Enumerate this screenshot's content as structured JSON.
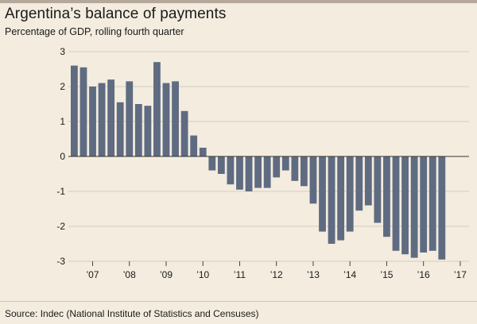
{
  "title": "Argentina’s balance of payments",
  "subtitle": "Percentage of GDP, rolling fourth quarter",
  "source": "Source: Indec (National Institute of Statistics and Censuses)",
  "colors": {
    "bar": "#5f6b81",
    "grid": "#d6ccbd",
    "zero": "#333333",
    "background": "#f3ecdf"
  },
  "chart_data": {
    "type": "bar",
    "title": "Argentina’s balance of payments",
    "subtitle": "Percentage of GDP, rolling fourth quarter",
    "xlabel": "",
    "ylabel": "",
    "ylim": [
      -3,
      3
    ],
    "yticks": [
      "3",
      "2",
      "1",
      "0",
      "-1",
      "-2",
      "-3"
    ],
    "ytick_values": [
      3,
      2,
      1,
      0,
      -1,
      -2,
      -3
    ],
    "xtick_labels": [
      "’07",
      "’08",
      "’09",
      "’10",
      "’11",
      "’12",
      "’13",
      "’14",
      "’15",
      "’16",
      "’17"
    ],
    "xtick_bar_index": [
      2,
      6,
      10,
      14,
      18,
      22,
      26,
      30,
      34,
      38,
      42
    ],
    "grid": true,
    "values": [
      2.6,
      2.55,
      2.0,
      2.1,
      2.2,
      1.55,
      2.15,
      1.5,
      1.45,
      2.7,
      2.1,
      2.15,
      1.3,
      0.6,
      0.25,
      -0.4,
      -0.5,
      -0.8,
      -0.95,
      -1.0,
      -0.9,
      -0.9,
      -0.6,
      -0.4,
      -0.7,
      -0.85,
      -1.35,
      -2.15,
      -2.5,
      -2.4,
      -2.15,
      -1.55,
      -1.4,
      -1.9,
      -2.3,
      -2.7,
      -2.8,
      -2.9,
      -2.75,
      -2.7,
      -2.95
    ]
  }
}
